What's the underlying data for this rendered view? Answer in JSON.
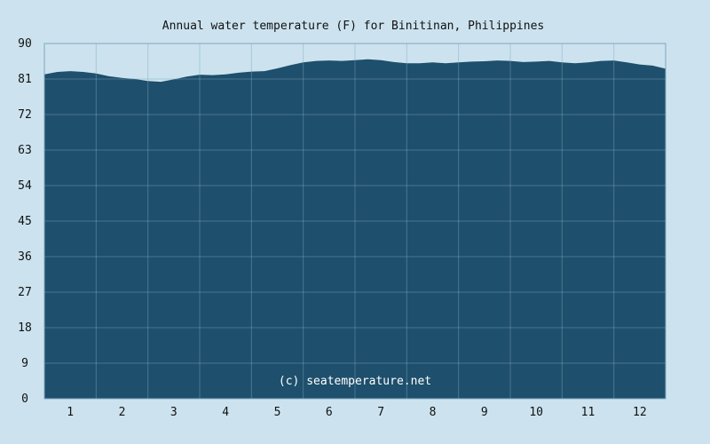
{
  "chart_data": {
    "type": "area",
    "title": "Annual water temperature (F) for Binitinan, Philippines",
    "xlabel": "",
    "ylabel": "",
    "x_ticks": [
      "1",
      "2",
      "3",
      "4",
      "5",
      "6",
      "7",
      "8",
      "9",
      "10",
      "11",
      "12"
    ],
    "y_ticks": [
      "0",
      "9",
      "18",
      "27",
      "36",
      "45",
      "54",
      "63",
      "72",
      "81",
      "90"
    ],
    "ylim": [
      0,
      90
    ],
    "xlim": [
      0,
      12
    ],
    "grid": true,
    "watermark": "(c) seatemperature.net",
    "fill_color": "#1e4f6c",
    "grid_color": "#7fa6bc",
    "background_color": "#cce3ef",
    "x": [
      0.0,
      0.25,
      0.5,
      0.75,
      1.0,
      1.25,
      1.5,
      1.75,
      2.0,
      2.25,
      2.5,
      2.75,
      3.0,
      3.25,
      3.5,
      3.75,
      4.0,
      4.25,
      4.5,
      4.75,
      5.0,
      5.25,
      5.5,
      5.75,
      6.0,
      6.25,
      6.5,
      6.75,
      7.0,
      7.25,
      7.5,
      7.75,
      8.0,
      8.25,
      8.5,
      8.75,
      9.0,
      9.25,
      9.5,
      9.75,
      10.0,
      10.25,
      10.5,
      10.75,
      11.0,
      11.25,
      11.5,
      11.75,
      12.0
    ],
    "y": [
      82.2,
      82.8,
      83.0,
      82.8,
      82.4,
      81.7,
      81.3,
      81.0,
      80.5,
      80.3,
      80.9,
      81.6,
      82.1,
      82.0,
      82.2,
      82.6,
      82.9,
      83.0,
      83.7,
      84.5,
      85.2,
      85.6,
      85.7,
      85.6,
      85.8,
      86.0,
      85.8,
      85.3,
      85.0,
      85.0,
      85.2,
      85.0,
      85.2,
      85.4,
      85.5,
      85.7,
      85.6,
      85.3,
      85.4,
      85.6,
      85.2,
      85.0,
      85.2,
      85.6,
      85.7,
      85.2,
      84.7,
      84.4,
      83.6
    ]
  }
}
